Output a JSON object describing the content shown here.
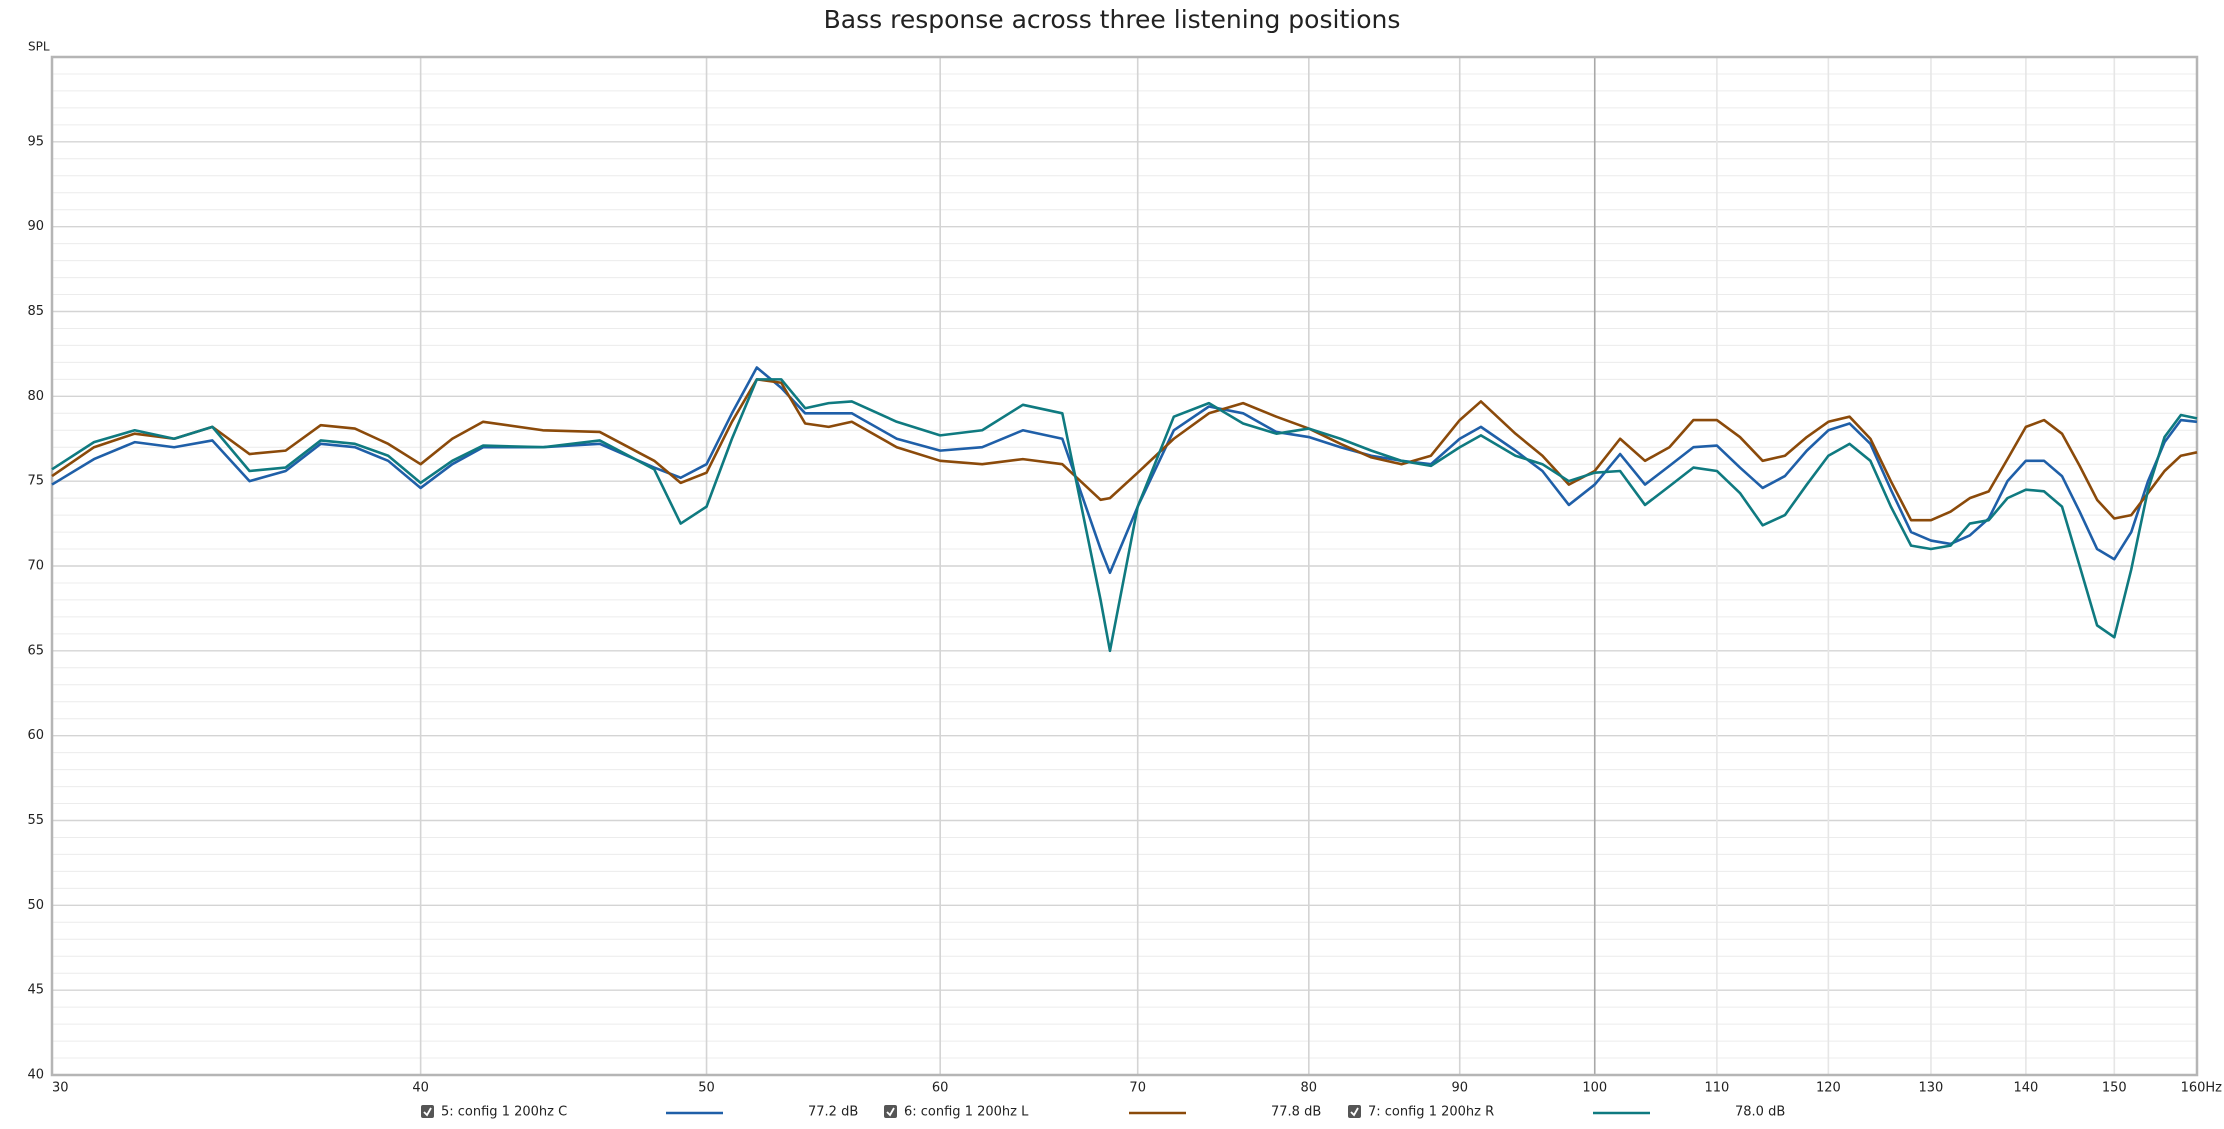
{
  "chart_data": {
    "type": "line",
    "title": "Bass response across three listening positions",
    "y_label": "SPL",
    "log_x": true,
    "grid": true,
    "x": [
      30,
      31,
      32,
      33,
      34,
      35,
      36,
      37,
      38,
      39,
      40,
      41,
      42,
      44,
      46,
      48,
      49,
      50,
      51,
      52,
      53,
      54,
      55,
      56,
      58,
      60,
      62,
      64,
      66,
      68,
      68.5,
      70,
      72,
      74,
      76,
      78,
      80,
      82,
      84,
      86,
      88,
      90,
      91.5,
      94,
      96,
      98,
      100,
      102,
      104,
      106,
      108,
      110,
      112,
      114,
      116,
      118,
      120,
      122,
      124,
      126,
      128,
      130,
      132,
      134,
      136,
      138,
      140,
      142,
      144,
      146,
      148,
      150,
      152,
      154,
      156,
      158,
      160
    ],
    "series": [
      {
        "name": "5: config 1 200hz C",
        "legend_value": "77.2 dB",
        "color": "#1f5fa8",
        "values": [
          74.8,
          76.3,
          77.3,
          77.0,
          77.4,
          75.0,
          75.6,
          77.2,
          77.0,
          76.2,
          74.6,
          76.0,
          77.0,
          77.0,
          77.2,
          75.8,
          75.2,
          76.0,
          79.0,
          81.7,
          80.5,
          79.0,
          79.0,
          79.0,
          77.5,
          76.8,
          77.0,
          78.0,
          77.5,
          71.0,
          69.6,
          73.5,
          78.0,
          79.4,
          79.0,
          77.9,
          77.6,
          77.0,
          76.5,
          76.2,
          76.0,
          77.5,
          78.2,
          76.8,
          75.6,
          73.6,
          74.8,
          76.6,
          74.8,
          75.9,
          77.0,
          77.1,
          75.8,
          74.6,
          75.3,
          76.8,
          78.0,
          78.4,
          77.2,
          74.5,
          72.0,
          71.5,
          71.3,
          71.8,
          72.8,
          75.0,
          76.2,
          76.2,
          75.3,
          73.2,
          71.0,
          70.4,
          72.0,
          75.0,
          77.3,
          78.6,
          78.5
        ]
      },
      {
        "name": "6: config 1 200hz L",
        "legend_value": "77.8 dB",
        "color": "#8b4a0a",
        "values": [
          75.3,
          77.0,
          77.8,
          77.5,
          78.2,
          76.6,
          76.8,
          78.3,
          78.1,
          77.2,
          76.0,
          77.5,
          78.5,
          78.0,
          77.9,
          76.2,
          74.9,
          75.5,
          78.5,
          81.0,
          80.8,
          78.4,
          78.2,
          78.5,
          77.0,
          76.2,
          76.0,
          76.3,
          76.0,
          73.9,
          74.0,
          75.5,
          77.5,
          79.0,
          79.6,
          78.8,
          78.1,
          77.2,
          76.4,
          76.0,
          76.5,
          78.6,
          79.7,
          77.8,
          76.5,
          74.8,
          75.6,
          77.5,
          76.2,
          77.0,
          78.6,
          78.6,
          77.6,
          76.2,
          76.5,
          77.6,
          78.5,
          78.8,
          77.5,
          75.0,
          72.7,
          72.7,
          73.2,
          74.0,
          74.4,
          76.3,
          78.2,
          78.6,
          77.8,
          75.9,
          73.9,
          72.8,
          73.0,
          74.3,
          75.6,
          76.5,
          76.7
        ]
      },
      {
        "name": "7: config 1 200hz R",
        "legend_value": "78.0 dB",
        "color": "#0f7a80",
        "values": [
          75.7,
          77.3,
          78.0,
          77.5,
          78.2,
          75.6,
          75.8,
          77.4,
          77.2,
          76.5,
          74.9,
          76.2,
          77.1,
          77.0,
          77.4,
          75.7,
          72.5,
          73.5,
          77.5,
          81.0,
          81.0,
          79.3,
          79.6,
          79.7,
          78.5,
          77.7,
          78.0,
          79.5,
          79.0,
          68.0,
          65.0,
          73.5,
          78.8,
          79.6,
          78.4,
          77.8,
          78.1,
          77.5,
          76.8,
          76.2,
          75.9,
          77.0,
          77.7,
          76.5,
          76.0,
          75.0,
          75.5,
          75.6,
          73.6,
          74.7,
          75.8,
          75.6,
          74.3,
          72.4,
          73.0,
          74.8,
          76.5,
          77.2,
          76.2,
          73.5,
          71.2,
          71.0,
          71.2,
          72.5,
          72.7,
          74.0,
          74.5,
          74.4,
          73.5,
          70.0,
          66.5,
          65.8,
          69.8,
          74.5,
          77.6,
          78.9,
          78.7
        ]
      }
    ],
    "xlim": [
      30,
      160
    ],
    "ylim": [
      40,
      100
    ],
    "xticks": [
      30,
      40,
      50,
      60,
      70,
      80,
      90,
      100,
      110,
      120,
      130,
      140,
      150,
      {
        "value": 160,
        "label": "160Hz"
      }
    ],
    "yticks": [
      40,
      45,
      50,
      55,
      60,
      65,
      70,
      75,
      80,
      85,
      90,
      95
    ],
    "yminorticks": [
      41,
      42,
      43,
      44,
      46,
      47,
      48,
      49,
      51,
      52,
      53,
      54,
      56,
      57,
      58,
      59,
      61,
      62,
      63,
      64,
      66,
      67,
      68,
      69,
      71,
      72,
      73,
      74,
      76,
      77,
      78,
      79,
      81,
      82,
      83,
      84,
      86,
      87,
      88,
      89,
      91,
      92,
      93,
      94,
      96,
      97,
      98,
      99
    ]
  }
}
